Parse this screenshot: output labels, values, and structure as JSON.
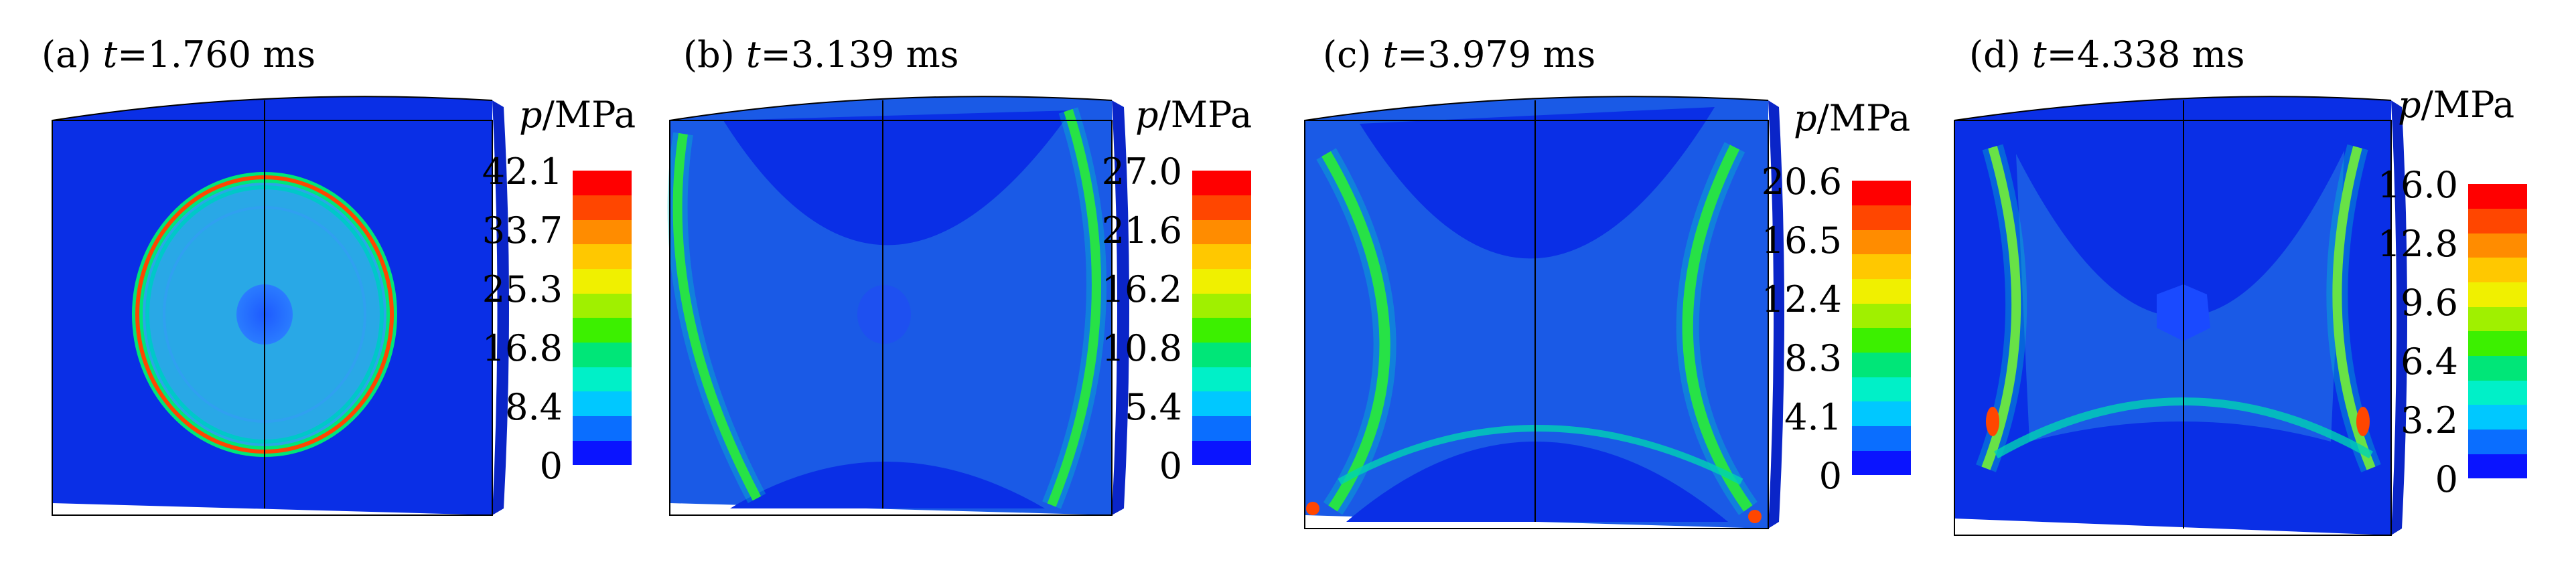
{
  "palette": [
    "#0a14ff",
    "#0a6eff",
    "#00c8ff",
    "#00f0c8",
    "#00e678",
    "#3cf000",
    "#a0f000",
    "#f0f000",
    "#ffc800",
    "#ff8c00",
    "#ff4600",
    "#ff0000"
  ],
  "panels": [
    {
      "id": "a",
      "label": "(a) ",
      "tvar": "t",
      "tval": "=1.760 ms",
      "legend_title_var": "p",
      "legend_title_unit": "/MPa",
      "ticks": [
        "42.1",
        "33.7",
        "25.3",
        "16.8",
        "8.4",
        "0"
      ]
    },
    {
      "id": "b",
      "label": "(b) ",
      "tvar": "t",
      "tval": "=3.139 ms",
      "legend_title_var": "p",
      "legend_title_unit": "/MPa",
      "ticks": [
        "27.0",
        "21.6",
        "16.2",
        "10.8",
        "5.4",
        "0"
      ]
    },
    {
      "id": "c",
      "label": "(c) ",
      "tvar": "t",
      "tval": "=3.979 ms",
      "legend_title_var": "p",
      "legend_title_unit": "/MPa",
      "ticks": [
        "20.6",
        "16.5",
        "12.4",
        "8.3",
        "4.1",
        "0"
      ]
    },
    {
      "id": "d",
      "label": "(d) ",
      "tvar": "t",
      "tval": "=4.338 ms",
      "legend_title_var": "p",
      "legend_title_unit": "/MPa",
      "ticks": [
        "16.0",
        "12.8",
        "9.6",
        "6.4",
        "3.2",
        "0"
      ]
    }
  ]
}
